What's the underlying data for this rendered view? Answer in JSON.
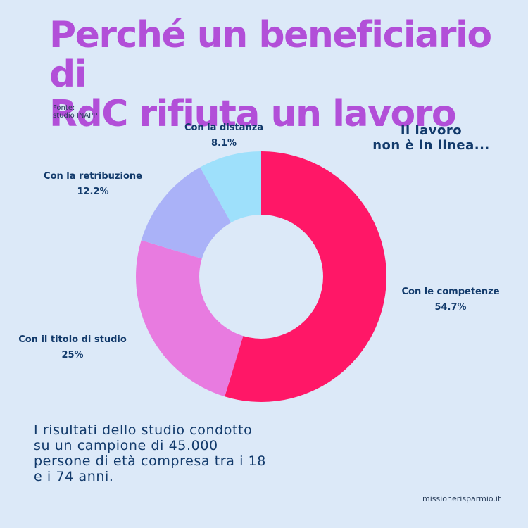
{
  "title_lines": [
    "Perché un beneficiario di",
    "RdC rifiuta un lavoro"
  ],
  "source_lines": [
    "Fonte:",
    "studio INAPP"
  ],
  "side_note_lines": [
    "Il lavoro",
    "non è in linea..."
  ],
  "bottom_note": "I risultati dello studio condotto su un campione di 45.000 persone di età compresa tra i 18 e i 74 anni.",
  "site": "missionerisparmio.it",
  "colors": {
    "background": "#dce9f8",
    "title": "#b24fd8",
    "text": "#123a6b"
  },
  "chart_data": {
    "type": "pie",
    "subtype": "donut",
    "categories": [
      "Con le competenze",
      "Con il titolo di studio",
      "Con la retribuzione",
      "Con la distanza"
    ],
    "values": [
      54.7,
      25,
      12.2,
      8.1
    ],
    "value_labels": [
      "54.7%",
      "25%",
      "12.2%",
      "8.1%"
    ],
    "colors": [
      "#ff1767",
      "#e87be0",
      "#aab2f8",
      "#9ee0fb"
    ],
    "start": "top",
    "direction": "clockwise",
    "legend": "none"
  }
}
